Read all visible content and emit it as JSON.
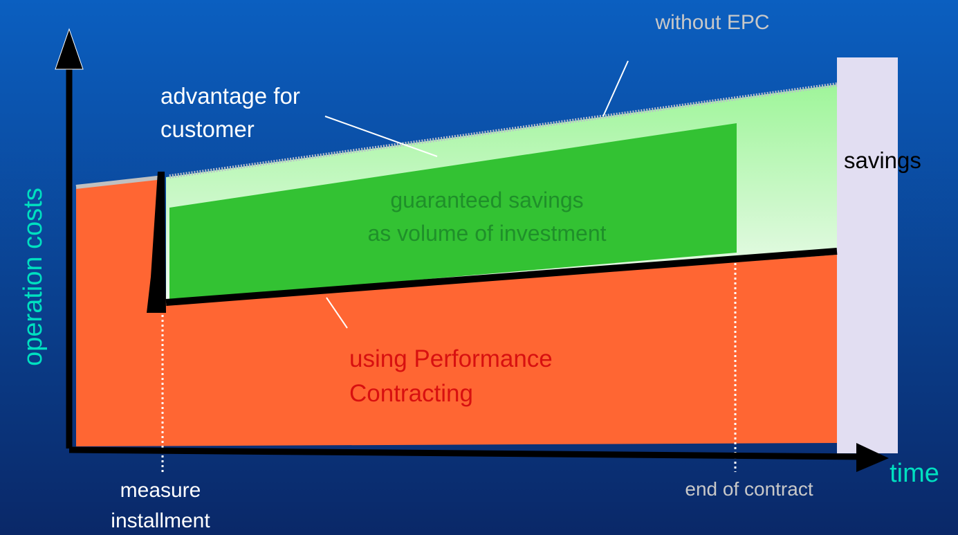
{
  "labels": {
    "without_epc": "without EPC",
    "advantage": [
      "advantage for",
      "customer"
    ],
    "savings": "savings",
    "guaranteed": [
      "guaranteed savings",
      "as volume of investment"
    ],
    "y_axis": "operation costs",
    "performance": [
      "using Performance",
      "Contracting"
    ],
    "x_axis": "time",
    "measure": [
      "measure",
      "installment"
    ],
    "end": "end of contract"
  }
}
